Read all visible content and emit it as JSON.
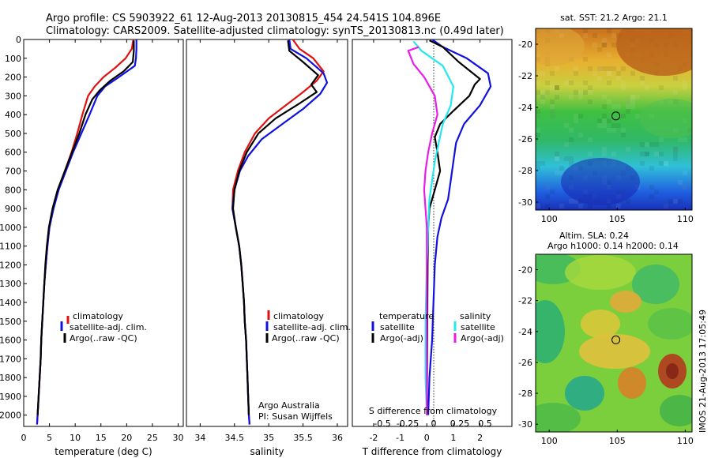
{
  "title_line1": "Argo profile: CS 5903922_61 12-Aug-2013 20130815_454 24.541S 104.896E",
  "title_line2": "Climatology: CARS2009. Satellite-adjusted climatology: synTS_20130813.nc (0.49d later)",
  "side_stamp": "IMOS 21-Aug-2013 17:05:49",
  "colors": {
    "climatology": "#e01010",
    "satellite": "#1010e0",
    "argo": "#000000",
    "salinity_sat": "#22e8f0",
    "salinity_argo": "#e81ee8"
  },
  "chart_data": [
    {
      "type": "line",
      "xlabel": "temperature (deg C)",
      "xlim": [
        0,
        31
      ],
      "xticks": [
        0,
        5,
        10,
        15,
        20,
        25,
        30
      ],
      "ylim": [
        2060,
        0
      ],
      "yticks": [
        0,
        100,
        200,
        300,
        400,
        500,
        600,
        700,
        800,
        900,
        1000,
        1100,
        1200,
        1300,
        1400,
        1500,
        1600,
        1700,
        1800,
        1900,
        2000
      ],
      "legend": [
        "climatology",
        "satellite-adj. clim.",
        "Argo(..raw -QC)"
      ],
      "series": [
        {
          "name": "climatology",
          "color": "#e01010",
          "points": [
            [
              21.3,
              0
            ],
            [
              21.0,
              50
            ],
            [
              19.8,
              100
            ],
            [
              17.8,
              150
            ],
            [
              15.5,
              200
            ],
            [
              13.8,
              250
            ],
            [
              12.5,
              300
            ],
            [
              11.4,
              400
            ],
            [
              10.4,
              500
            ],
            [
              9.3,
              600
            ],
            [
              8.0,
              700
            ],
            [
              6.7,
              800
            ],
            [
              5.7,
              900
            ],
            [
              5.0,
              1000
            ],
            [
              4.6,
              1100
            ],
            [
              4.3,
              1200
            ],
            [
              4.0,
              1300
            ],
            [
              3.8,
              1400
            ],
            [
              3.6,
              1500
            ],
            [
              3.4,
              1600
            ],
            [
              3.3,
              1700
            ],
            [
              3.1,
              1800
            ],
            [
              2.9,
              1900
            ],
            [
              2.7,
              2000
            ],
            [
              2.6,
              2050
            ]
          ]
        },
        {
          "name": "satellite-adj. clim.",
          "color": "#1010e0",
          "points": [
            [
              21.9,
              0
            ],
            [
              21.9,
              50
            ],
            [
              21.8,
              100
            ],
            [
              21.6,
              140
            ],
            [
              18.5,
              200
            ],
            [
              15.8,
              250
            ],
            [
              14.3,
              300
            ],
            [
              12.8,
              400
            ],
            [
              11.2,
              500
            ],
            [
              9.6,
              600
            ],
            [
              8.2,
              700
            ],
            [
              6.8,
              800
            ],
            [
              5.8,
              900
            ],
            [
              5.0,
              1000
            ],
            [
              4.6,
              1100
            ],
            [
              4.3,
              1200
            ],
            [
              4.0,
              1300
            ],
            [
              3.8,
              1400
            ],
            [
              3.6,
              1500
            ],
            [
              3.4,
              1600
            ],
            [
              3.3,
              1700
            ],
            [
              3.1,
              1800
            ],
            [
              2.9,
              1900
            ],
            [
              2.7,
              2000
            ],
            [
              2.6,
              2050
            ]
          ]
        },
        {
          "name": "Argo(..raw -QC)",
          "color": "#000000",
          "points": [
            [
              21.4,
              5
            ],
            [
              21.4,
              60
            ],
            [
              21.2,
              120
            ],
            [
              19.4,
              170
            ],
            [
              16.8,
              220
            ],
            [
              14.8,
              270
            ],
            [
              13.3,
              320
            ],
            [
              12.0,
              400
            ],
            [
              10.8,
              500
            ],
            [
              9.4,
              600
            ],
            [
              8.0,
              700
            ],
            [
              6.6,
              800
            ],
            [
              5.6,
              900
            ],
            [
              4.9,
              1000
            ],
            [
              4.5,
              1100
            ],
            [
              4.2,
              1200
            ],
            [
              4.0,
              1300
            ],
            [
              3.8,
              1400
            ],
            [
              3.6,
              1500
            ],
            [
              3.4,
              1600
            ],
            [
              3.3,
              1700
            ],
            [
              3.1,
              1800
            ],
            [
              2.9,
              1900
            ],
            [
              2.7,
              2000
            ]
          ]
        }
      ]
    },
    {
      "type": "line",
      "xlabel": "salinity",
      "xlim": [
        33.8,
        36.15
      ],
      "xticks": [
        34,
        34.5,
        35,
        35.5,
        36
      ],
      "ylim": [
        2060,
        0
      ],
      "legend": [
        "climatology",
        "satellite-adj. clim.",
        "Argo(..raw -QC)"
      ],
      "annotation": [
        "Argo Australia",
        "PI: Susan Wijffels"
      ],
      "series": [
        {
          "name": "climatology",
          "color": "#e01010",
          "points": [
            [
              35.35,
              0
            ],
            [
              35.45,
              50
            ],
            [
              35.65,
              100
            ],
            [
              35.8,
              170
            ],
            [
              35.7,
              220
            ],
            [
              35.5,
              280
            ],
            [
              35.25,
              350
            ],
            [
              35.0,
              420
            ],
            [
              34.8,
              500
            ],
            [
              34.65,
              600
            ],
            [
              34.55,
              700
            ],
            [
              34.48,
              800
            ],
            [
              34.47,
              900
            ],
            [
              34.52,
              1000
            ],
            [
              34.57,
              1100
            ],
            [
              34.6,
              1200
            ],
            [
              34.62,
              1300
            ],
            [
              34.64,
              1400
            ],
            [
              34.65,
              1500
            ],
            [
              34.67,
              1600
            ],
            [
              34.68,
              1700
            ],
            [
              34.69,
              1800
            ],
            [
              34.7,
              1900
            ],
            [
              34.71,
              2000
            ],
            [
              34.72,
              2050
            ]
          ]
        },
        {
          "name": "satellite-adj. clim.",
          "color": "#1010e0",
          "points": [
            [
              35.3,
              0
            ],
            [
              35.32,
              50
            ],
            [
              35.55,
              100
            ],
            [
              35.8,
              180
            ],
            [
              35.85,
              230
            ],
            [
              35.75,
              290
            ],
            [
              35.5,
              370
            ],
            [
              35.2,
              450
            ],
            [
              34.9,
              530
            ],
            [
              34.7,
              620
            ],
            [
              34.58,
              700
            ],
            [
              34.5,
              800
            ],
            [
              34.47,
              900
            ],
            [
              34.52,
              1000
            ],
            [
              34.57,
              1100
            ],
            [
              34.6,
              1200
            ],
            [
              34.62,
              1300
            ],
            [
              34.64,
              1400
            ],
            [
              34.65,
              1500
            ],
            [
              34.67,
              1600
            ],
            [
              34.68,
              1700
            ],
            [
              34.69,
              1800
            ],
            [
              34.7,
              1900
            ],
            [
              34.71,
              2000
            ],
            [
              34.72,
              2050
            ]
          ]
        },
        {
          "name": "Argo(..raw -QC)",
          "color": "#000000",
          "points": [
            [
              35.28,
              5
            ],
            [
              35.3,
              60
            ],
            [
              35.5,
              120
            ],
            [
              35.72,
              190
            ],
            [
              35.62,
              240
            ],
            [
              35.7,
              280
            ],
            [
              35.45,
              340
            ],
            [
              35.1,
              420
            ],
            [
              34.85,
              500
            ],
            [
              34.68,
              600
            ],
            [
              34.57,
              700
            ],
            [
              34.5,
              800
            ],
            [
              34.48,
              900
            ],
            [
              34.52,
              1000
            ],
            [
              34.57,
              1100
            ],
            [
              34.6,
              1200
            ],
            [
              34.62,
              1300
            ],
            [
              34.64,
              1400
            ],
            [
              34.65,
              1500
            ],
            [
              34.67,
              1600
            ],
            [
              34.68,
              1700
            ],
            [
              34.69,
              1800
            ],
            [
              34.7,
              1900
            ],
            [
              34.71,
              2000
            ]
          ]
        }
      ]
    },
    {
      "type": "line",
      "xlabel": "T difference from climatology",
      "xlabel_top": "S difference from climatology",
      "xlim": [
        -2.8,
        3.2
      ],
      "xticks": [
        -2,
        -1,
        0,
        1,
        2
      ],
      "top_ticks": [
        "-0.5",
        "-0.25",
        "0",
        "0.25",
        "0.5"
      ],
      "ylim": [
        2060,
        0
      ],
      "legend_titles": [
        "temperature",
        "salinity"
      ],
      "legend": [
        "satellite",
        "Argo(-adj)",
        "satellite",
        "Argo(-adj)"
      ],
      "series": [
        {
          "name": "satellite",
          "color": "#1010e0",
          "points": [
            [
              0.2,
              0
            ],
            [
              0.6,
              40
            ],
            [
              1.5,
              100
            ],
            [
              2.3,
              180
            ],
            [
              2.4,
              250
            ],
            [
              2.0,
              350
            ],
            [
              1.4,
              450
            ],
            [
              1.1,
              550
            ],
            [
              1.0,
              650
            ],
            [
              0.9,
              750
            ],
            [
              0.8,
              850
            ],
            [
              0.55,
              950
            ],
            [
              0.4,
              1050
            ],
            [
              0.3,
              1200
            ],
            [
              0.25,
              1400
            ],
            [
              0.2,
              1600
            ],
            [
              0.1,
              1800
            ],
            [
              0.05,
              2000
            ]
          ]
        },
        {
          "name": "Argo(-adj)",
          "color": "#000000",
          "points": [
            [
              0.1,
              5
            ],
            [
              0.6,
              40
            ],
            [
              1.2,
              120
            ],
            [
              2.0,
              210
            ],
            [
              1.8,
              240
            ],
            [
              1.6,
              300
            ],
            [
              1.0,
              380
            ],
            [
              0.5,
              450
            ],
            [
              0.3,
              520
            ],
            [
              0.4,
              600
            ],
            [
              0.5,
              700
            ],
            [
              0.3,
              800
            ],
            [
              0.1,
              900
            ],
            [
              0.05,
              1000
            ],
            [
              0.03,
              1200
            ],
            [
              0.02,
              1500
            ],
            [
              0.01,
              1800
            ],
            [
              0.0,
              2000
            ]
          ]
        },
        {
          "name": "satellite",
          "color": "#22e8f0",
          "points": [
            [
              -0.5,
              10
            ],
            [
              -0.2,
              60
            ],
            [
              0.6,
              140
            ],
            [
              1.0,
              250
            ],
            [
              0.9,
              350
            ],
            [
              0.6,
              450
            ],
            [
              0.45,
              550
            ],
            [
              0.3,
              650
            ],
            [
              0.2,
              750
            ],
            [
              0.1,
              850
            ],
            [
              0.05,
              1000
            ],
            [
              0.0,
              1200
            ],
            [
              -0.05,
              1500
            ],
            [
              -0.05,
              1800
            ],
            [
              0.0,
              2000
            ]
          ]
        },
        {
          "name": "Argo(-adj)",
          "color": "#e81ee8",
          "points": [
            [
              -0.3,
              40
            ],
            [
              -0.7,
              60
            ],
            [
              -0.5,
              130
            ],
            [
              -0.1,
              200
            ],
            [
              0.3,
              300
            ],
            [
              0.4,
              400
            ],
            [
              0.2,
              500
            ],
            [
              0.05,
              600
            ],
            [
              -0.05,
              700
            ],
            [
              -0.1,
              800
            ],
            [
              -0.05,
              900
            ],
            [
              0.0,
              1000
            ],
            [
              0.0,
              1200
            ],
            [
              0.0,
              1500
            ],
            [
              0.0,
              1800
            ],
            [
              0.0,
              2000
            ]
          ]
        }
      ]
    },
    {
      "type": "heatmap",
      "title": "sat. SST: 21.2 Argo: 21.1",
      "xlim": [
        99,
        110.5
      ],
      "ylim": [
        -30.5,
        -19
      ],
      "xticks": [
        100,
        105,
        110
      ],
      "yticks": [
        -20,
        -22,
        -24,
        -26,
        -28,
        -30
      ],
      "marker": [
        104.9,
        -24.54
      ]
    },
    {
      "type": "heatmap",
      "title_line1": "Altim. SLA: 0.24",
      "title_line2": "Argo h1000: 0.14 h2000: 0.14",
      "xlim": [
        99,
        110.5
      ],
      "ylim": [
        -30.5,
        -19
      ],
      "xticks": [
        100,
        105,
        110
      ],
      "yticks": [
        -20,
        -22,
        -24,
        -26,
        -28,
        -30
      ],
      "marker": [
        104.9,
        -24.54
      ]
    }
  ]
}
